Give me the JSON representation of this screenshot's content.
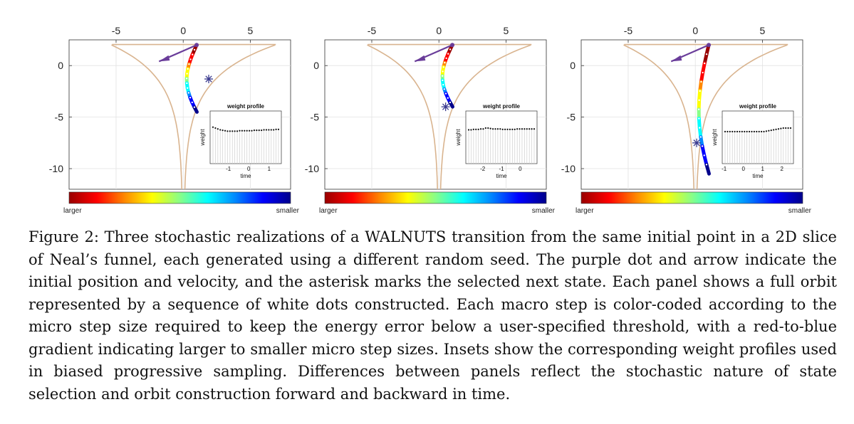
{
  "caption": {
    "label": "Figure 2:",
    "text": "Three stochastic realizations of a WALNUTS transition from the same initial point in a 2D slice of Neal’s funnel, each generated using a different random seed. The purple dot and arrow indicate the initial position and velocity, and the asterisk marks the selected next state. Each panel shows a full orbit represented by a sequence of white dots constructed. Each macro step is color-coded according to the micro step size required to keep the energy error below a user-specified threshold, with a red-to-blue gradient indicating larger to smaller micro step sizes. Insets show the corresponding weight profiles used in biased progressive sampling. Differences between panels reflect the stochastic nature of state selection and orbit construction forward and backward in time."
  },
  "colorbar": {
    "left_label": "larger",
    "right_label": "smaller"
  },
  "colors": {
    "funnel": "#d9b48f",
    "arrow": "#6a3d9a",
    "gradient": [
      "#990000",
      "#ff0000",
      "#ff8800",
      "#ffff00",
      "#88ff88",
      "#00ffff",
      "#0088ff",
      "#0000ff",
      "#00008b"
    ]
  },
  "chart_data": [
    {
      "type": "line",
      "panel": 1,
      "xticks": [
        -5,
        0,
        5
      ],
      "yticks": [
        0,
        -5,
        -10
      ],
      "xlim": [
        -8.5,
        8
      ],
      "ylim": [
        -12,
        2.5
      ],
      "grid": true,
      "orbit_y_range": [
        -4.5,
        2
      ],
      "selected_state": [
        1.9,
        -1.3
      ],
      "initial_point": [
        1.0,
        2.0
      ],
      "inset": {
        "title": "weight profile",
        "ylabel": "weight",
        "xlabel": "time",
        "xticks": [
          -1,
          0,
          1
        ],
        "xlim": [
          -1.9,
          1.6
        ],
        "weights": [
          0.72,
          0.7,
          0.68,
          0.66,
          0.65,
          0.64,
          0.63,
          0.63,
          0.63,
          0.63,
          0.63,
          0.64,
          0.64,
          0.64,
          0.64,
          0.64,
          0.64,
          0.65,
          0.65,
          0.65,
          0.65,
          0.66,
          0.66,
          0.66,
          0.66,
          0.66,
          0.67,
          0.67
        ]
      }
    },
    {
      "type": "line",
      "panel": 2,
      "xticks": [
        -5,
        0,
        5
      ],
      "yticks": [
        0,
        -5,
        -10
      ],
      "xlim": [
        -8.5,
        8
      ],
      "ylim": [
        -12,
        2.5
      ],
      "grid": true,
      "orbit_y_range": [
        -4,
        2
      ],
      "selected_state": [
        0.5,
        -4
      ],
      "initial_point": [
        1.0,
        2.0
      ],
      "inset": {
        "title": "weight profile",
        "ylabel": "weight",
        "xlabel": "time",
        "xticks": [
          -2,
          -1,
          0
        ],
        "xlim": [
          -2.9,
          0.9
        ],
        "weights": [
          0.66,
          0.66,
          0.67,
          0.67,
          0.67,
          0.68,
          0.68,
          0.7,
          0.7,
          0.69,
          0.68,
          0.68,
          0.68,
          0.68,
          0.67,
          0.67,
          0.67,
          0.67,
          0.67,
          0.67,
          0.68,
          0.68,
          0.68,
          0.68,
          0.68,
          0.68,
          0.68,
          0.68
        ]
      }
    },
    {
      "type": "line",
      "panel": 3,
      "xticks": [
        -5,
        0,
        5
      ],
      "yticks": [
        0,
        -5,
        -10
      ],
      "xlim": [
        -8.5,
        8
      ],
      "ylim": [
        -12,
        2.5
      ],
      "grid": true,
      "orbit_y_range": [
        -10.5,
        2
      ],
      "selected_state": [
        0.1,
        -7.5
      ],
      "initial_point": [
        1.0,
        2.0
      ],
      "inset": {
        "title": "weight profile",
        "ylabel": "weight",
        "xlabel": "time",
        "xticks": [
          -1,
          0,
          1,
          2
        ],
        "xlim": [
          -1.1,
          2.6
        ],
        "weights": [
          0.62,
          0.62,
          0.62,
          0.62,
          0.62,
          0.62,
          0.62,
          0.62,
          0.62,
          0.62,
          0.62,
          0.62,
          0.62,
          0.62,
          0.62,
          0.62,
          0.62,
          0.63,
          0.64,
          0.65,
          0.66,
          0.67,
          0.68,
          0.69,
          0.7,
          0.7,
          0.7,
          0.7
        ]
      }
    }
  ]
}
